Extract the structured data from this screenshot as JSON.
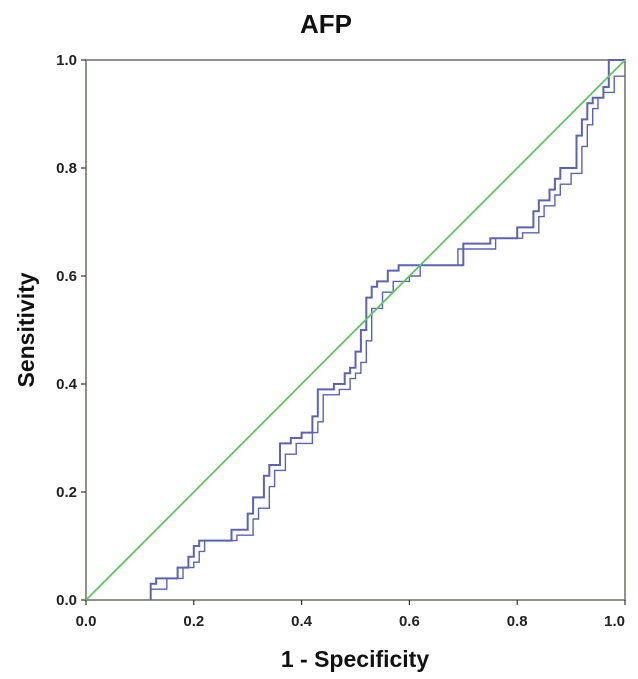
{
  "chart_data": {
    "type": "line",
    "title": "AFP",
    "xlabel": "1 - Specificity",
    "ylabel": "Sensitivity",
    "xlim": [
      0.0,
      1.0
    ],
    "ylim": [
      0.0,
      1.0
    ],
    "xticks": [
      "0.0",
      "0.2",
      "0.4",
      "0.6",
      "0.8",
      "1.0"
    ],
    "yticks": [
      "0.0",
      "0.2",
      "0.4",
      "0.6",
      "0.8",
      "1.0"
    ],
    "grid": false,
    "legend": "none",
    "colors": {
      "curve": "#5a63b8",
      "reference": "#5dc85d",
      "frame": "#6f7a6f"
    },
    "series": [
      {
        "x": [
          0.12,
          0.12,
          0.13,
          0.13,
          0.17,
          0.17,
          0.19,
          0.19,
          0.2,
          0.2,
          0.21,
          0.21,
          0.27,
          0.27,
          0.3,
          0.3,
          0.31,
          0.31,
          0.33,
          0.33,
          0.34,
          0.34,
          0.36,
          0.36,
          0.38,
          0.38,
          0.4,
          0.4,
          0.42,
          0.42,
          0.43,
          0.43,
          0.46,
          0.46,
          0.48,
          0.48,
          0.49,
          0.49,
          0.5,
          0.5,
          0.51,
          0.51,
          0.52,
          0.52,
          0.53,
          0.53,
          0.54,
          0.54,
          0.56,
          0.56,
          0.58,
          0.58,
          0.7,
          0.7,
          0.75,
          0.75,
          0.8,
          0.8,
          0.83,
          0.83,
          0.84,
          0.84,
          0.86,
          0.86,
          0.87,
          0.87,
          0.88,
          0.88,
          0.91,
          0.91,
          0.92,
          0.92,
          0.93,
          0.93,
          0.94,
          0.94,
          0.96,
          0.96,
          0.97,
          0.97,
          1.0
        ],
        "y": [
          0.0,
          0.03,
          0.03,
          0.04,
          0.04,
          0.06,
          0.06,
          0.08,
          0.08,
          0.1,
          0.1,
          0.11,
          0.11,
          0.13,
          0.13,
          0.16,
          0.16,
          0.19,
          0.19,
          0.23,
          0.23,
          0.25,
          0.25,
          0.29,
          0.29,
          0.3,
          0.3,
          0.31,
          0.31,
          0.34,
          0.34,
          0.39,
          0.39,
          0.4,
          0.4,
          0.42,
          0.42,
          0.43,
          0.43,
          0.46,
          0.46,
          0.5,
          0.5,
          0.56,
          0.56,
          0.58,
          0.58,
          0.59,
          0.59,
          0.61,
          0.61,
          0.62,
          0.62,
          0.66,
          0.66,
          0.67,
          0.67,
          0.69,
          0.69,
          0.72,
          0.72,
          0.74,
          0.74,
          0.76,
          0.76,
          0.78,
          0.78,
          0.8,
          0.8,
          0.86,
          0.86,
          0.89,
          0.89,
          0.92,
          0.92,
          0.93,
          0.93,
          0.95,
          0.95,
          1.0,
          1.0
        ]
      },
      {
        "x": [
          0.12,
          0.12,
          0.15,
          0.15,
          0.18,
          0.18,
          0.2,
          0.2,
          0.21,
          0.21,
          0.22,
          0.22,
          0.28,
          0.28,
          0.31,
          0.31,
          0.32,
          0.32,
          0.34,
          0.34,
          0.35,
          0.35,
          0.37,
          0.37,
          0.39,
          0.39,
          0.42,
          0.42,
          0.43,
          0.43,
          0.44,
          0.44,
          0.47,
          0.47,
          0.49,
          0.49,
          0.5,
          0.5,
          0.51,
          0.51,
          0.52,
          0.52,
          0.53,
          0.53,
          0.55,
          0.55,
          0.57,
          0.57,
          0.6,
          0.6,
          0.62,
          0.62,
          0.69,
          0.69,
          0.76,
          0.76,
          0.81,
          0.81,
          0.84,
          0.84,
          0.85,
          0.85,
          0.87,
          0.87,
          0.88,
          0.88,
          0.9,
          0.9,
          0.92,
          0.92,
          0.93,
          0.93,
          0.94,
          0.94,
          0.95,
          0.95,
          0.96,
          0.96,
          0.98,
          0.98,
          1.0
        ],
        "y": [
          0.0,
          0.02,
          0.02,
          0.04,
          0.04,
          0.06,
          0.06,
          0.07,
          0.07,
          0.09,
          0.09,
          0.11,
          0.11,
          0.12,
          0.12,
          0.15,
          0.15,
          0.17,
          0.17,
          0.21,
          0.21,
          0.24,
          0.24,
          0.27,
          0.27,
          0.29,
          0.29,
          0.31,
          0.31,
          0.33,
          0.33,
          0.38,
          0.38,
          0.39,
          0.39,
          0.41,
          0.41,
          0.42,
          0.42,
          0.44,
          0.44,
          0.48,
          0.48,
          0.54,
          0.54,
          0.57,
          0.57,
          0.59,
          0.59,
          0.6,
          0.6,
          0.62,
          0.62,
          0.65,
          0.65,
          0.67,
          0.67,
          0.68,
          0.68,
          0.71,
          0.71,
          0.73,
          0.73,
          0.75,
          0.75,
          0.77,
          0.77,
          0.79,
          0.79,
          0.84,
          0.84,
          0.88,
          0.88,
          0.91,
          0.91,
          0.93,
          0.93,
          0.94,
          0.94,
          0.97,
          0.97
        ]
      },
      {
        "x": [
          0.0,
          1.0
        ],
        "y": [
          0.0,
          1.0
        ]
      }
    ]
  }
}
